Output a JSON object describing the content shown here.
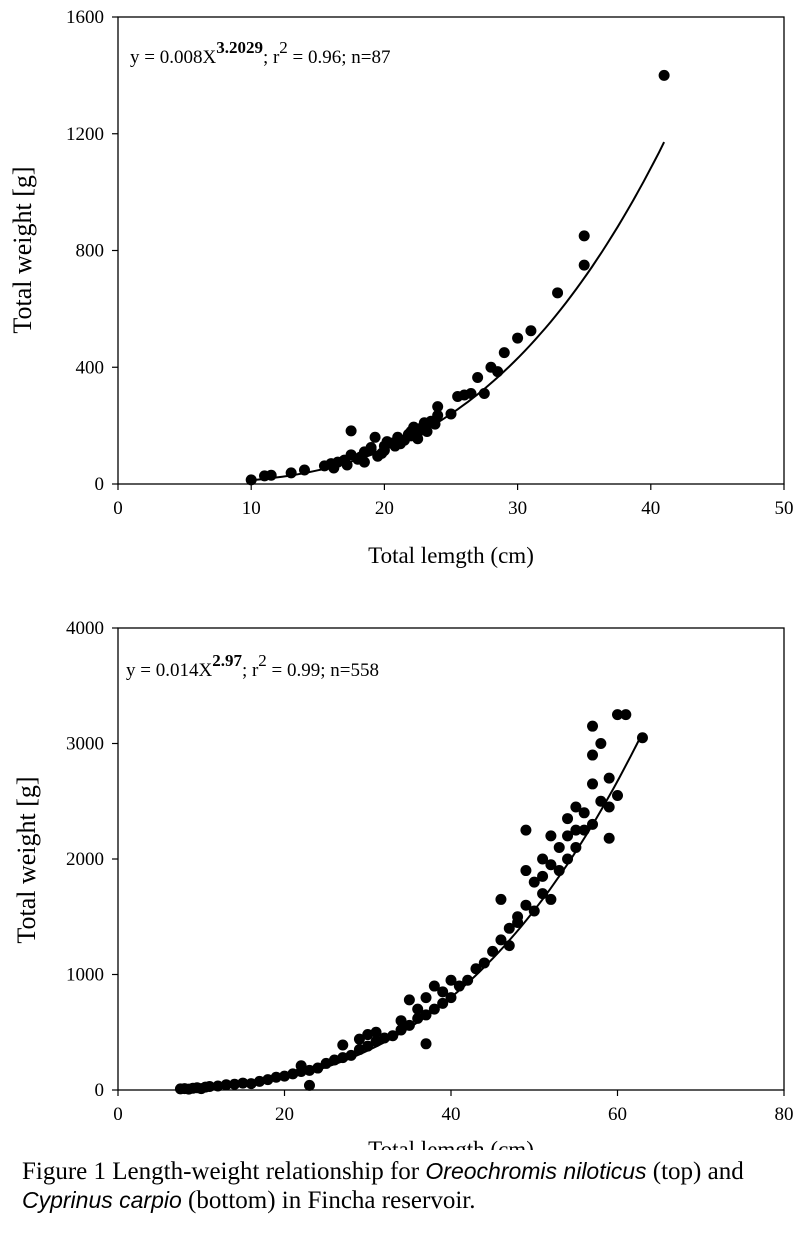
{
  "chart_data": [
    {
      "type": "scatter",
      "equation": {
        "prefix": "y = 0.008X",
        "exponent": "3.2029",
        "r_part": "; r",
        "r_exp": "2",
        "suffix": " = 0.96; n=87"
      },
      "xlabel": "Total lemgth (cm)",
      "ylabel": "Total weight [g]",
      "xlim": [
        0,
        50
      ],
      "ylim": [
        0,
        1600
      ],
      "xticks": [
        0,
        10,
        20,
        30,
        40,
        50
      ],
      "yticks": [
        0,
        400,
        800,
        1200,
        1600
      ],
      "grid": false,
      "fit": {
        "a": 0.008,
        "b": 3.2029,
        "x_range": [
          10,
          41
        ]
      },
      "series": [
        {
          "points": [
            [
              10,
              14
            ],
            [
              11,
              28
            ],
            [
              11.5,
              30
            ],
            [
              13,
              38
            ],
            [
              14,
              48
            ],
            [
              15.5,
              62
            ],
            [
              16,
              70
            ],
            [
              16.2,
              55
            ],
            [
              16.5,
              75
            ],
            [
              17,
              82
            ],
            [
              17.2,
              65
            ],
            [
              17.5,
              100
            ],
            [
              17.5,
              182
            ],
            [
              18,
              85
            ],
            [
              18.2,
              92
            ],
            [
              18.5,
              110
            ],
            [
              18.5,
              75
            ],
            [
              19,
              118
            ],
            [
              19,
              125
            ],
            [
              19.3,
              160
            ],
            [
              19.5,
              95
            ],
            [
              19.8,
              105
            ],
            [
              20,
              130
            ],
            [
              20,
              115
            ],
            [
              20.2,
              145
            ],
            [
              20.5,
              140
            ],
            [
              20.8,
              130
            ],
            [
              21,
              155
            ],
            [
              21,
              160
            ],
            [
              21.2,
              138
            ],
            [
              21.5,
              150
            ],
            [
              21.8,
              170
            ],
            [
              22,
              165
            ],
            [
              22,
              180
            ],
            [
              22.2,
              195
            ],
            [
              22.5,
              155
            ],
            [
              22.5,
              175
            ],
            [
              22.7,
              190
            ],
            [
              23,
              210
            ],
            [
              23,
              200
            ],
            [
              23.2,
              180
            ],
            [
              23.5,
              215
            ],
            [
              23.8,
              205
            ],
            [
              24,
              265
            ],
            [
              24,
              235
            ],
            [
              25,
              240
            ],
            [
              25.5,
              300
            ],
            [
              26,
              305
            ],
            [
              26.5,
              310
            ],
            [
              27,
              365
            ],
            [
              27.5,
              310
            ],
            [
              28,
              400
            ],
            [
              28.5,
              385
            ],
            [
              29,
              450
            ],
            [
              30,
              500
            ],
            [
              31,
              525
            ],
            [
              33,
              655
            ],
            [
              35,
              850
            ],
            [
              35,
              750
            ],
            [
              41,
              1400
            ]
          ]
        }
      ]
    },
    {
      "type": "scatter",
      "equation": {
        "prefix": "y = 0.014X",
        "exponent": "2.97",
        "r_part": "; r",
        "r_exp": "2",
        "suffix": " = 0.99; n=558"
      },
      "xlabel": "Total lemgth (cm)",
      "ylabel": "Total weight [g]",
      "xlim": [
        0,
        80
      ],
      "ylim": [
        0,
        4000
      ],
      "xticks": [
        0,
        20,
        40,
        60,
        80
      ],
      "yticks": [
        0,
        1000,
        2000,
        3000,
        4000
      ],
      "grid": false,
      "fit": {
        "a": 0.014,
        "b": 2.97,
        "x_range": [
          7.5,
          63
        ]
      },
      "series": [
        {
          "points": [
            [
              7.5,
              10
            ],
            [
              8,
              12
            ],
            [
              8.5,
              8
            ],
            [
              9,
              15
            ],
            [
              9.5,
              20
            ],
            [
              10,
              12
            ],
            [
              10.5,
              25
            ],
            [
              11,
              30
            ],
            [
              12,
              35
            ],
            [
              13,
              45
            ],
            [
              14,
              50
            ],
            [
              15,
              60
            ],
            [
              16,
              55
            ],
            [
              17,
              75
            ],
            [
              18,
              90
            ],
            [
              19,
              110
            ],
            [
              20,
              120
            ],
            [
              21,
              140
            ],
            [
              22,
              160
            ],
            [
              22,
              210
            ],
            [
              23,
              40
            ],
            [
              23,
              170
            ],
            [
              24,
              190
            ],
            [
              25,
              230
            ],
            [
              26,
              260
            ],
            [
              27,
              280
            ],
            [
              27,
              390
            ],
            [
              28,
              300
            ],
            [
              29,
              350
            ],
            [
              29,
              440
            ],
            [
              30,
              380
            ],
            [
              30,
              480
            ],
            [
              31,
              420
            ],
            [
              31,
              500
            ],
            [
              32,
              450
            ],
            [
              33,
              470
            ],
            [
              34,
              520
            ],
            [
              34,
              600
            ],
            [
              35,
              560
            ],
            [
              35,
              780
            ],
            [
              36,
              620
            ],
            [
              36,
              700
            ],
            [
              37,
              650
            ],
            [
              37,
              400
            ],
            [
              37,
              800
            ],
            [
              38,
              700
            ],
            [
              38,
              900
            ],
            [
              39,
              750
            ],
            [
              39,
              850
            ],
            [
              40,
              800
            ],
            [
              40,
              950
            ],
            [
              41,
              900
            ],
            [
              42,
              950
            ],
            [
              43,
              1050
            ],
            [
              44,
              1100
            ],
            [
              45,
              1200
            ],
            [
              46,
              1300
            ],
            [
              46,
              1650
            ],
            [
              47,
              1400
            ],
            [
              47,
              1250
            ],
            [
              48,
              1500
            ],
            [
              48,
              1450
            ],
            [
              49,
              1600
            ],
            [
              49,
              1900
            ],
            [
              49,
              2250
            ],
            [
              50,
              1800
            ],
            [
              50,
              1550
            ],
            [
              51,
              1850
            ],
            [
              51,
              2000
            ],
            [
              51,
              1700
            ],
            [
              52,
              1950
            ],
            [
              52,
              2200
            ],
            [
              52,
              1650
            ],
            [
              53,
              2100
            ],
            [
              53,
              1900
            ],
            [
              54,
              2200
            ],
            [
              54,
              2350
            ],
            [
              54,
              2000
            ],
            [
              55,
              2250
            ],
            [
              55,
              2450
            ],
            [
              55,
              2100
            ],
            [
              56,
              2400
            ],
            [
              56,
              2250
            ],
            [
              57,
              2300
            ],
            [
              57,
              2650
            ],
            [
              57,
              2900
            ],
            [
              57,
              3150
            ],
            [
              58,
              2500
            ],
            [
              58,
              3000
            ],
            [
              59,
              2700
            ],
            [
              59,
              2450
            ],
            [
              59,
              2180
            ],
            [
              60,
              2550
            ],
            [
              60,
              3250
            ],
            [
              61,
              3250
            ],
            [
              63,
              3050
            ]
          ]
        }
      ]
    }
  ],
  "caption": {
    "p1": "Figure 1 Length-weight relationship for ",
    "sp1": "Oreochromis niloticus",
    "p2": " (top) and ",
    "sp2": "Cyprinus carpio",
    "p3": " (bottom) in Fincha reservoir."
  }
}
